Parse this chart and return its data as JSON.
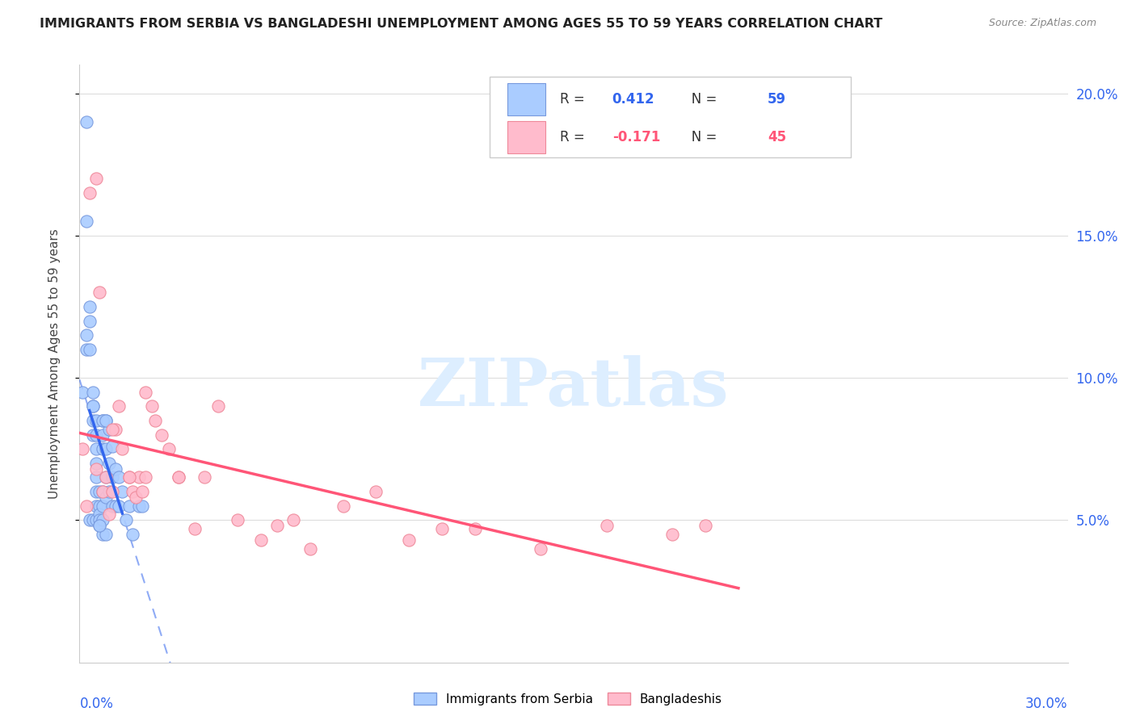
{
  "title": "IMMIGRANTS FROM SERBIA VS BANGLADESHI UNEMPLOYMENT AMONG AGES 55 TO 59 YEARS CORRELATION CHART",
  "source": "Source: ZipAtlas.com",
  "ylabel": "Unemployment Among Ages 55 to 59 years",
  "xmin": 0.0,
  "xmax": 0.3,
  "ymin": 0.0,
  "ymax": 0.21,
  "yticks": [
    0.05,
    0.1,
    0.15,
    0.2
  ],
  "right_ytick_labels": [
    "5.0%",
    "10.0%",
    "15.0%",
    "20.0%"
  ],
  "serbia_R": 0.412,
  "serbia_N": 59,
  "bangladesh_R": -0.171,
  "bangladesh_N": 45,
  "serbia_color": "#aaccff",
  "serbia_edge_color": "#7799dd",
  "serbia_trend_color": "#3366ee",
  "bangladesh_color": "#ffbbcc",
  "bangladesh_edge_color": "#ee8899",
  "bangladesh_trend_color": "#ff5577",
  "watermark_color": "#ddeeff",
  "serbia_x": [
    0.001,
    0.002,
    0.002,
    0.002,
    0.003,
    0.003,
    0.003,
    0.004,
    0.004,
    0.004,
    0.004,
    0.004,
    0.005,
    0.005,
    0.005,
    0.005,
    0.005,
    0.005,
    0.005,
    0.006,
    0.006,
    0.006,
    0.006,
    0.006,
    0.007,
    0.007,
    0.007,
    0.007,
    0.007,
    0.007,
    0.007,
    0.008,
    0.008,
    0.008,
    0.008,
    0.008,
    0.009,
    0.009,
    0.009,
    0.01,
    0.01,
    0.01,
    0.011,
    0.011,
    0.012,
    0.012,
    0.013,
    0.014,
    0.015,
    0.016,
    0.018,
    0.019,
    0.002,
    0.003,
    0.004,
    0.005,
    0.006,
    0.007,
    0.008
  ],
  "serbia_y": [
    0.095,
    0.19,
    0.115,
    0.11,
    0.125,
    0.11,
    0.05,
    0.095,
    0.09,
    0.085,
    0.08,
    0.05,
    0.08,
    0.075,
    0.07,
    0.065,
    0.06,
    0.055,
    0.05,
    0.06,
    0.055,
    0.052,
    0.05,
    0.048,
    0.085,
    0.08,
    0.075,
    0.06,
    0.055,
    0.05,
    0.045,
    0.085,
    0.075,
    0.065,
    0.058,
    0.045,
    0.082,
    0.07,
    0.06,
    0.076,
    0.065,
    0.055,
    0.068,
    0.055,
    0.065,
    0.055,
    0.06,
    0.05,
    0.055,
    0.045,
    0.055,
    0.055,
    0.155,
    0.12,
    0.09,
    0.085,
    0.048,
    0.085,
    0.085
  ],
  "bangladesh_x": [
    0.001,
    0.002,
    0.003,
    0.005,
    0.006,
    0.007,
    0.008,
    0.009,
    0.01,
    0.011,
    0.012,
    0.013,
    0.015,
    0.016,
    0.017,
    0.018,
    0.019,
    0.02,
    0.022,
    0.023,
    0.025,
    0.027,
    0.03,
    0.035,
    0.038,
    0.042,
    0.048,
    0.055,
    0.06,
    0.065,
    0.07,
    0.08,
    0.09,
    0.1,
    0.11,
    0.12,
    0.14,
    0.16,
    0.18,
    0.19,
    0.005,
    0.01,
    0.015,
    0.02,
    0.03
  ],
  "bangladesh_y": [
    0.075,
    0.055,
    0.165,
    0.17,
    0.13,
    0.06,
    0.065,
    0.052,
    0.06,
    0.082,
    0.09,
    0.075,
    0.065,
    0.06,
    0.058,
    0.065,
    0.06,
    0.065,
    0.09,
    0.085,
    0.08,
    0.075,
    0.065,
    0.047,
    0.065,
    0.09,
    0.05,
    0.043,
    0.048,
    0.05,
    0.04,
    0.055,
    0.06,
    0.043,
    0.047,
    0.047,
    0.04,
    0.048,
    0.045,
    0.048,
    0.068,
    0.082,
    0.065,
    0.095,
    0.065
  ]
}
